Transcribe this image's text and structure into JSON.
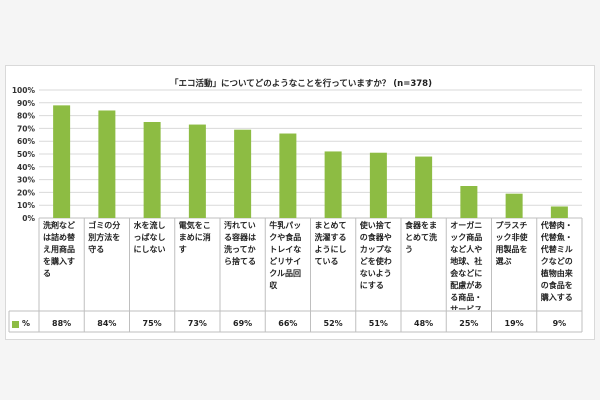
{
  "chart_data": {
    "type": "bar",
    "title": "「エコ活動」についてどのようなことを行っていますか？ (n=378)",
    "categories": [
      "洗剤などは詰め替え用商品を購入する",
      "ゴミの分別方法を守る",
      "水を流しっぱなしにしない",
      "電気をこまめに消す",
      "汚れている容器は洗ってから捨てる",
      "牛乳パックや食品トレイなどリサイクル品回収",
      "まとめて洗濯するようにしている",
      "使い捨ての食器やカップなどを使わないようにする",
      "食器をまとめて洗う",
      "オーガニック商品など人や地球、社会などに配慮がある商品・サービスを選ぶ",
      "プラスチック非使用製品を選ぶ",
      "代替肉・代替魚・代替ミルクなどの植物由来の食品を購入する"
    ],
    "series": [
      {
        "name": "%",
        "values": [
          88,
          84,
          75,
          73,
          69,
          66,
          52,
          51,
          48,
          25,
          19,
          9
        ],
        "value_labels": [
          "88%",
          "84%",
          "75%",
          "73%",
          "69%",
          "66%",
          "52%",
          "51%",
          "48%",
          "25%",
          "19%",
          "9%"
        ]
      }
    ],
    "y_ticks": [
      "0%",
      "10%",
      "20%",
      "30%",
      "40%",
      "50%",
      "60%",
      "70%",
      "80%",
      "90%",
      "100%"
    ],
    "ylim": [
      0,
      100
    ],
    "grid": true,
    "legend": "bottom-left, as data table row",
    "bar_color": "#8dbc43"
  }
}
